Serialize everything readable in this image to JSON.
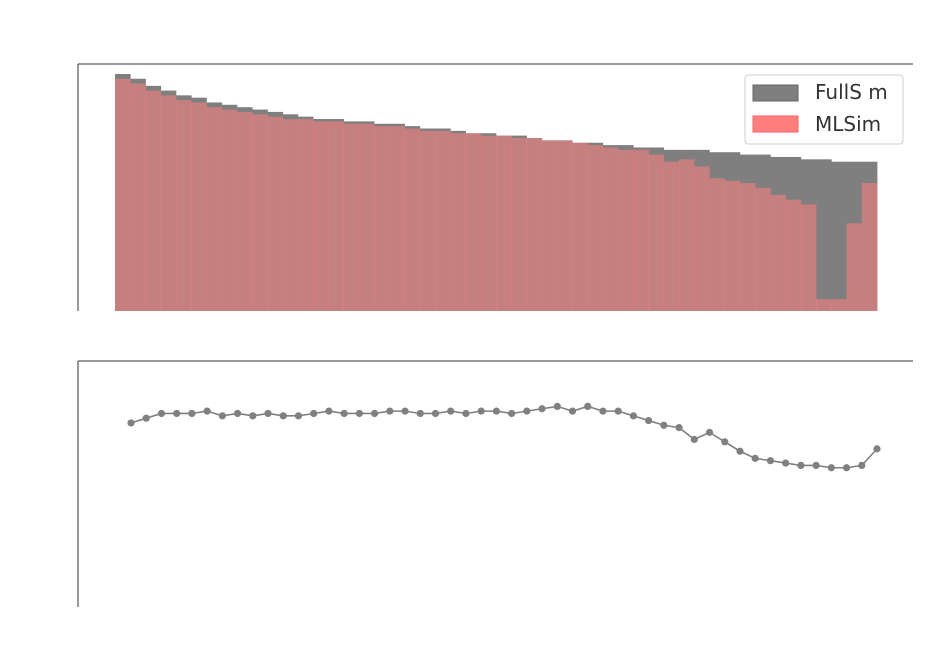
{
  "colors": {
    "full_sim": "#7f7f7f",
    "ml_sim": "#ff7f7f",
    "overlap": "#c03f3f",
    "ratio_line": "#808080",
    "axes": "#333333",
    "legend_border": "#cccccc"
  },
  "chart_data": [
    {
      "type": "bar",
      "subtype": "overlaid-step-histogram",
      "bins": 50,
      "legend_position": "top-right",
      "grid": false,
      "ylim": [
        0,
        100
      ],
      "series": [
        {
          "name": "FullS m",
          "color": "#7f7f7f",
          "values": [
            100,
            98,
            95,
            93,
            91,
            90,
            88,
            87,
            86,
            85,
            84,
            83,
            82,
            81,
            81,
            80,
            80,
            79,
            79,
            78,
            77,
            77,
            76,
            75,
            75,
            74,
            74,
            73,
            72,
            72,
            71,
            71,
            70,
            70,
            69,
            69,
            68,
            68,
            68,
            67,
            67,
            66,
            66,
            65,
            65,
            64,
            64,
            63,
            63,
            63
          ]
        },
        {
          "name": "MLSim",
          "color": "#ff7f7f",
          "values": [
            98,
            96,
            93,
            91,
            89,
            88,
            86,
            85,
            84,
            83,
            82,
            81,
            81,
            80,
            80,
            79,
            79,
            78,
            78,
            77,
            76,
            76,
            75,
            75,
            74,
            74,
            73,
            73,
            72,
            72,
            71,
            70,
            69,
            68,
            68,
            66,
            63,
            64,
            61,
            56,
            55,
            54,
            52,
            49,
            47,
            45,
            5,
            5,
            37,
            54
          ]
        }
      ]
    },
    {
      "type": "line",
      "series_color": "#808080",
      "ylim": [
        0.2,
        1.2
      ],
      "x": [
        1,
        2,
        3,
        4,
        5,
        6,
        7,
        8,
        9,
        10,
        11,
        12,
        13,
        14,
        15,
        16,
        17,
        18,
        19,
        20,
        21,
        22,
        23,
        24,
        25,
        26,
        27,
        28,
        29,
        30,
        31,
        32,
        33,
        34,
        35,
        36,
        37,
        38,
        39,
        40,
        41,
        42,
        43,
        44,
        45,
        46,
        47,
        48,
        49,
        50
      ],
      "values": [
        0.98,
        1.0,
        1.02,
        1.02,
        1.02,
        1.03,
        1.01,
        1.02,
        1.01,
        1.02,
        1.01,
        1.01,
        1.02,
        1.03,
        1.02,
        1.02,
        1.02,
        1.03,
        1.03,
        1.02,
        1.02,
        1.03,
        1.02,
        1.03,
        1.03,
        1.02,
        1.03,
        1.04,
        1.05,
        1.03,
        1.05,
        1.03,
        1.03,
        1.01,
        0.99,
        0.97,
        0.96,
        0.91,
        0.94,
        0.9,
        0.86,
        0.83,
        0.82,
        0.81,
        0.8,
        0.8,
        0.79,
        0.79,
        0.8,
        0.87
      ],
      "values_note_ignored": false
    }
  ]
}
